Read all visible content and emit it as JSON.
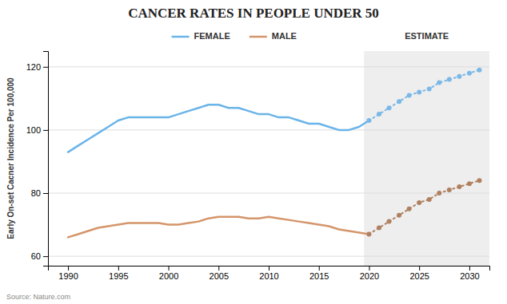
{
  "chart_data": {
    "type": "line",
    "title": "CANCER RATES IN PEOPLE UNDER 50",
    "y_label": "Early On-set Cacner Incidence Per 100,000",
    "source": "Source: Nature.com",
    "x": [
      1990,
      1991,
      1992,
      1993,
      1994,
      1995,
      1996,
      1997,
      1998,
      1999,
      2000,
      2001,
      2002,
      2003,
      2004,
      2005,
      2006,
      2007,
      2008,
      2009,
      2010,
      2011,
      2012,
      2013,
      2014,
      2015,
      2016,
      2017,
      2018,
      2019,
      2020,
      2021,
      2022,
      2023,
      2024,
      2025,
      2026,
      2027,
      2028,
      2029,
      2030,
      2031
    ],
    "xlim": [
      1988,
      2032
    ],
    "xticks": [
      1990,
      1995,
      2000,
      2005,
      2010,
      2015,
      2020,
      2025,
      2030
    ],
    "ylim": [
      57,
      125
    ],
    "yticks": [
      60,
      80,
      100,
      120
    ],
    "grid": "y",
    "legend": "top",
    "estimate_region": {
      "x_start": 2019.5,
      "label": "ESTIMATE"
    },
    "series": [
      {
        "name": "FEMALE",
        "color": "#6ab4e8",
        "line_style": "solid",
        "values": [
          93,
          95,
          97,
          99,
          101,
          103,
          104,
          104,
          104,
          104,
          104,
          105,
          106,
          107,
          108,
          108,
          107,
          107,
          106,
          105,
          105,
          104,
          104,
          103,
          102,
          102,
          101,
          100,
          100,
          101,
          103,
          null,
          null,
          null,
          null,
          null,
          null,
          null,
          null,
          null,
          null,
          null
        ]
      },
      {
        "name": "MALE",
        "color": "#d4956a",
        "line_style": "solid",
        "values": [
          66,
          67,
          68,
          69,
          69.5,
          70,
          70.5,
          70.5,
          70.5,
          70.5,
          70,
          70,
          70.5,
          71,
          72,
          72.5,
          72.5,
          72.5,
          72,
          72,
          72.5,
          72,
          71.5,
          71,
          70.5,
          70,
          69.5,
          68.5,
          68,
          67.5,
          67,
          null,
          null,
          null,
          null,
          null,
          null,
          null,
          null,
          null,
          null,
          null
        ]
      },
      {
        "color": "#7ab8e8",
        "line_style": "dotted",
        "marker": "circle",
        "values": [
          null,
          null,
          null,
          null,
          null,
          null,
          null,
          null,
          null,
          null,
          null,
          null,
          null,
          null,
          null,
          null,
          null,
          null,
          null,
          null,
          null,
          null,
          null,
          null,
          null,
          null,
          null,
          null,
          null,
          null,
          103,
          105,
          107,
          109,
          111,
          112,
          113,
          115,
          116,
          117,
          118,
          119
        ]
      },
      {
        "color": "#b08060",
        "line_style": "dotted",
        "marker": "circle",
        "values": [
          null,
          null,
          null,
          null,
          null,
          null,
          null,
          null,
          null,
          null,
          null,
          null,
          null,
          null,
          null,
          null,
          null,
          null,
          null,
          null,
          null,
          null,
          null,
          null,
          null,
          null,
          null,
          null,
          null,
          null,
          67,
          69,
          71,
          73,
          75,
          77,
          78,
          80,
          81,
          82,
          83,
          84
        ]
      }
    ]
  }
}
